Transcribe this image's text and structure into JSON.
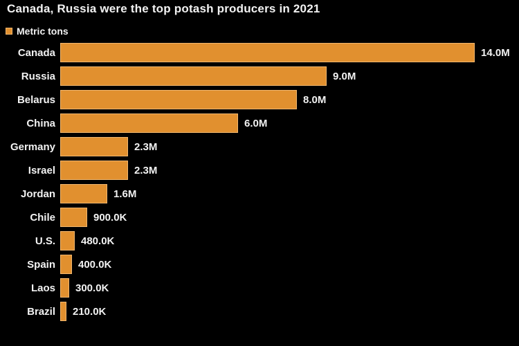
{
  "title": "Canada, Russia were the top potash producers in 2021",
  "legend": {
    "label": "Metric tons"
  },
  "colors": {
    "background": "#000000",
    "bar_fill": "#e1902f",
    "bar_edge": "#f1b76f",
    "text": "#f2f2f2"
  },
  "chart_data": {
    "type": "bar",
    "orientation": "horizontal",
    "title": "Canada, Russia were the top potash producers in 2021",
    "unit_label": "Metric tons",
    "categories": [
      "Canada",
      "Russia",
      "Belarus",
      "China",
      "Germany",
      "Israel",
      "Jordan",
      "Chile",
      "U.S.",
      "Spain",
      "Laos",
      "Brazil"
    ],
    "values": [
      14000000,
      9000000,
      8000000,
      6000000,
      2300000,
      2300000,
      1600000,
      900000,
      480000,
      400000,
      300000,
      210000
    ],
    "value_labels": [
      "14.0M",
      "9.0M",
      "8.0M",
      "6.0M",
      "2.3M",
      "2.3M",
      "1.6M",
      "900.0K",
      "480.0K",
      "400.0K",
      "300.0K",
      "210.0K"
    ],
    "xlim": [
      0,
      14000000
    ],
    "grid": false,
    "legend_position": "top-left"
  }
}
